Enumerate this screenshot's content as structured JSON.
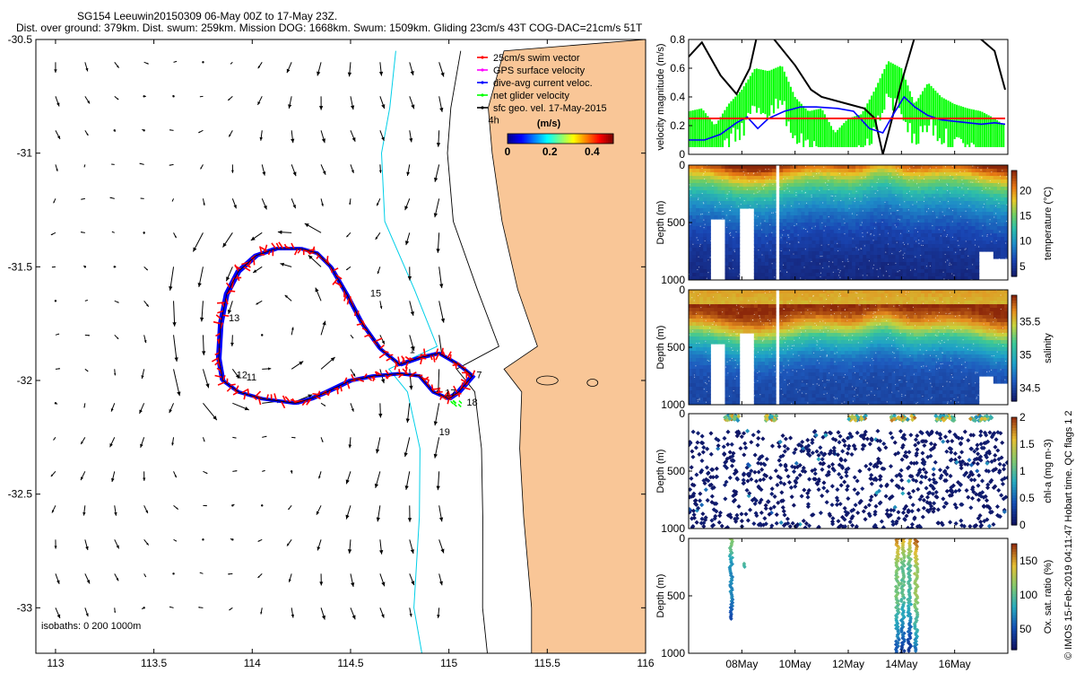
{
  "header": {
    "title": "SG154 Leeuwin20150309 06-May 00Z to 17-May 23Z.",
    "subtitle": "Dist. over ground: 379km. Dist. swum: 259km. Mission DOG: 1668km. Swum: 1509km. Gliding 23cm/s 43T COG-DAC=21cm/s 51T"
  },
  "side_note": "© IMOS 15-Feb-2019 04:11:47 Hobart time. QC flags 1 2",
  "colors": {
    "land": "#f9c697",
    "coast": "#000000",
    "isobath_200": "#00cfe8",
    "track_blue": "#0000ff",
    "swim_red": "#ff0000",
    "net_green": "#00ff00",
    "gps_magenta": "#ff00ff"
  },
  "chart_data": [
    {
      "id": "map",
      "type": "scatter",
      "subtype": "quiver-map",
      "xlim": [
        112.9,
        116.0
      ],
      "ylim": [
        -33.2,
        -30.5
      ],
      "x_ticks": [
        "113",
        "113.5",
        "114",
        "114.5",
        "115",
        "115.5",
        "116"
      ],
      "x_tick_values": [
        113,
        113.5,
        114,
        114.5,
        115,
        115.5,
        116
      ],
      "y_ticks": [
        "-30.5",
        "-31",
        "-31.5",
        "-32",
        "-32.5",
        "-33"
      ],
      "y_tick_values": [
        -30.5,
        -31,
        -31.5,
        -32,
        -32.5,
        -33
      ],
      "legend": {
        "position": "top-right",
        "items": [
          {
            "label": "25cm/s swim vector",
            "color": "#ff0000"
          },
          {
            "label": "GPS surface velocity",
            "color": "#ff00ff"
          },
          {
            "label": "dive-avg current veloc.",
            "color": "#0000ff"
          },
          {
            "label": "net glider velocity",
            "color": "#00ff00"
          },
          {
            "label": "sfc geo. vel. 17-May-2015",
            "color": "#000000"
          }
        ],
        "colorbar_title": "(m/s)",
        "colorbar_ticks": [
          "0",
          "0.2",
          "0.4"
        ],
        "colorbar_tick_values": [
          0,
          0.2,
          0.4
        ],
        "colorbar_range": [
          0,
          0.5
        ]
      },
      "isobath_label": "isobaths: 0   200  1000m",
      "vector_field": {
        "lon": [
          113.0,
          113.15,
          113.3,
          113.45,
          113.6,
          113.75,
          113.9,
          114.05,
          114.2,
          114.35,
          114.5,
          114.65,
          114.8,
          114.95
        ],
        "lat": [
          -30.6,
          -30.75,
          -30.9,
          -31.05,
          -31.2,
          -31.35,
          -31.5,
          -31.65,
          -31.8,
          -31.95,
          -32.1,
          -32.25,
          -32.4,
          -32.55,
          -32.7,
          -32.85,
          -33.0
        ],
        "ref_speed_ms": 0.25,
        "coast_lon_at_lat": [
          [
            -30.55,
            115.28
          ],
          [
            -30.8,
            115.2
          ],
          [
            -31.0,
            115.22
          ],
          [
            -31.3,
            115.27
          ],
          [
            -31.6,
            115.35
          ],
          [
            -31.85,
            115.45
          ],
          [
            -31.95,
            115.28
          ],
          [
            -32.05,
            115.37
          ],
          [
            -32.3,
            115.36
          ],
          [
            -32.6,
            115.38
          ],
          [
            -33.0,
            115.42
          ],
          [
            -33.2,
            115.42
          ]
        ]
      },
      "track_path": [
        [
          114.22,
          -32.1
        ],
        [
          114.05,
          -32.08
        ],
        [
          113.93,
          -32.05
        ],
        [
          113.85,
          -32.0
        ],
        [
          113.83,
          -31.9
        ],
        [
          113.84,
          -31.75
        ],
        [
          113.87,
          -31.62
        ],
        [
          113.93,
          -31.52
        ],
        [
          114.02,
          -31.45
        ],
        [
          114.12,
          -31.42
        ],
        [
          114.25,
          -31.42
        ],
        [
          114.33,
          -31.44
        ],
        [
          114.4,
          -31.5
        ],
        [
          114.48,
          -31.62
        ],
        [
          114.56,
          -31.75
        ],
        [
          114.65,
          -31.86
        ],
        [
          114.75,
          -31.93
        ],
        [
          114.85,
          -31.9
        ],
        [
          114.95,
          -31.88
        ],
        [
          115.05,
          -31.93
        ],
        [
          115.12,
          -31.98
        ],
        [
          115.05,
          -32.05
        ],
        [
          115.0,
          -32.08
        ],
        [
          114.92,
          -32.05
        ],
        [
          114.85,
          -31.98
        ],
        [
          114.75,
          -31.97
        ],
        [
          114.62,
          -31.98
        ],
        [
          114.5,
          -32.0
        ],
        [
          114.38,
          -32.05
        ],
        [
          114.3,
          -32.08
        ],
        [
          114.22,
          -32.1
        ]
      ],
      "track_labels": [
        {
          "text": "13",
          "lon": 113.88,
          "lat": -31.74
        },
        {
          "text": "15",
          "lon": 114.6,
          "lat": -31.63
        },
        {
          "text": "12",
          "lon": 113.92,
          "lat": -31.99
        },
        {
          "text": "11",
          "lon": 113.97,
          "lat": -32.0
        },
        {
          "text": "1",
          "lon": 114.8,
          "lat": -31.88
        },
        {
          "text": "7",
          "lon": 115.14,
          "lat": -31.99
        },
        {
          "text": "17",
          "lon": 114.98,
          "lat": -32.07
        },
        {
          "text": "18",
          "lon": 115.09,
          "lat": -32.11
        },
        {
          "text": "19",
          "lon": 114.95,
          "lat": -32.24
        },
        {
          "text": "4h",
          "lon": 115.2,
          "lat": -30.87
        }
      ]
    },
    {
      "id": "velocity",
      "type": "line",
      "ylabel": "velocity magnitude (m/s)",
      "ylim": [
        0,
        0.8
      ],
      "y_ticks": [
        "0",
        "0.2",
        "0.4",
        "0.6",
        "0.8"
      ],
      "y_tick_values": [
        0,
        0.2,
        0.4,
        0.6,
        0.8
      ],
      "x_day_range": [
        6,
        18
      ],
      "series": [
        {
          "name": "sfc geo. vel.",
          "color": "#000000",
          "x": [
            6.0,
            6.5,
            7.2,
            7.8,
            8.3,
            8.6,
            9.0,
            10.0,
            10.6,
            11.0,
            12.0,
            12.6,
            13.0,
            13.3,
            14.0,
            14.6,
            15.0,
            16.0,
            17.0,
            17.5,
            17.9
          ],
          "y": [
            0.68,
            0.78,
            0.55,
            0.42,
            0.6,
            0.85,
            0.85,
            0.62,
            0.45,
            0.4,
            0.35,
            0.32,
            0.25,
            0.0,
            0.5,
            0.88,
            0.9,
            0.88,
            0.8,
            0.72,
            0.45
          ]
        },
        {
          "name": "dive-avg current veloc.",
          "color": "#0000ff",
          "x": [
            6.0,
            6.6,
            7.2,
            7.8,
            8.2,
            8.6,
            9.0,
            9.6,
            10.2,
            10.8,
            11.6,
            12.2,
            12.8,
            13.3,
            13.7,
            14.1,
            14.5,
            15.0,
            15.5,
            16.0,
            16.5,
            17.0,
            17.5,
            17.9
          ],
          "y": [
            0.1,
            0.1,
            0.14,
            0.22,
            0.26,
            0.18,
            0.25,
            0.3,
            0.33,
            0.33,
            0.32,
            0.3,
            0.18,
            0.15,
            0.28,
            0.4,
            0.33,
            0.27,
            0.24,
            0.23,
            0.22,
            0.21,
            0.22,
            0.21
          ]
        },
        {
          "name": "25cm/s swim vector",
          "color": "#ff0000",
          "x": [
            6.0,
            17.9
          ],
          "y": [
            0.25,
            0.25
          ]
        },
        {
          "name": "net glider velocity",
          "color": "#00ff00",
          "x": [
            6.0,
            6.5,
            7.0,
            7.5,
            8.0,
            8.5,
            9.0,
            9.5,
            10.0,
            10.5,
            11.0,
            11.5,
            12.0,
            12.5,
            13.0,
            13.5,
            14.0,
            14.5,
            15.0,
            15.5,
            16.0,
            16.5,
            17.0,
            17.5,
            17.9
          ],
          "y": [
            0.3,
            0.32,
            0.2,
            0.35,
            0.45,
            0.6,
            0.58,
            0.62,
            0.4,
            0.3,
            0.32,
            0.15,
            0.25,
            0.28,
            0.45,
            0.65,
            0.6,
            0.35,
            0.5,
            0.4,
            0.35,
            0.32,
            0.3,
            0.25,
            0.2
          ]
        }
      ]
    },
    {
      "id": "temperature",
      "type": "heatmap",
      "ylabel": "Depth (m)",
      "cbar_label": "temperature (°C)",
      "ylim": [
        1000,
        0
      ],
      "y_ticks": [
        "0",
        "500",
        "1000"
      ],
      "y_tick_values": [
        0,
        500,
        1000
      ],
      "cbar_range": [
        3,
        24
      ],
      "cbar_ticks": [
        "5",
        "10",
        "15",
        "20"
      ],
      "cbar_tick_values": [
        5,
        10,
        15,
        20
      ],
      "surface_value": 22,
      "deep_value": 4
    },
    {
      "id": "salinity",
      "type": "heatmap",
      "ylabel": "Depth (m)",
      "cbar_label": "salinity",
      "ylim": [
        1000,
        0
      ],
      "y_ticks": [
        "0",
        "500",
        "1000"
      ],
      "y_tick_values": [
        0,
        500,
        1000
      ],
      "cbar_range": [
        34.3,
        35.9
      ],
      "cbar_ticks": [
        "34.5",
        "35",
        "35.5"
      ],
      "cbar_tick_values": [
        34.5,
        35,
        35.5
      ],
      "surface_value": 35.6,
      "deep_value": 34.4
    },
    {
      "id": "chla",
      "type": "scatter",
      "ylabel": "Depth (m)",
      "cbar_label": "chl-a (mg m-3)",
      "ylim": [
        1000,
        0
      ],
      "y_ticks": [
        "0",
        "500",
        "1000"
      ],
      "y_tick_values": [
        0,
        500,
        1000
      ],
      "cbar_range": [
        0,
        2
      ],
      "cbar_ticks": [
        "0",
        "0.5",
        "1",
        "1.5",
        "2"
      ],
      "cbar_tick_values": [
        0,
        0.5,
        1,
        1.5,
        2
      ]
    },
    {
      "id": "oxygen",
      "type": "scatter",
      "ylabel": "Depth (m)",
      "cbar_label": "Ox. sat. ratio (%)",
      "ylim": [
        1000,
        0
      ],
      "y_ticks": [
        "0",
        "500",
        "1000"
      ],
      "y_tick_values": [
        0,
        500,
        1000
      ],
      "cbar_range": [
        20,
        175
      ],
      "cbar_ticks": [
        "50",
        "100",
        "150"
      ],
      "cbar_tick_values": [
        50,
        100,
        150
      ],
      "x_ticks": [
        "08May",
        "10May",
        "12May",
        "14May",
        "16May"
      ],
      "x_tick_days": [
        8,
        10,
        12,
        14,
        16
      ],
      "casts": [
        {
          "day": 7.6,
          "top": 0,
          "bottom": 700,
          "value": 70
        },
        {
          "day": 8.1,
          "top": 220,
          "bottom": 260,
          "value": 90
        },
        {
          "day": 13.85,
          "top": 0,
          "bottom": 1000,
          "value": 110
        },
        {
          "day": 14.05,
          "top": 0,
          "bottom": 1000,
          "value": 100
        },
        {
          "day": 14.3,
          "top": 0,
          "bottom": 990,
          "value": 95
        },
        {
          "day": 14.55,
          "top": 0,
          "bottom": 980,
          "value": 120
        }
      ]
    }
  ]
}
